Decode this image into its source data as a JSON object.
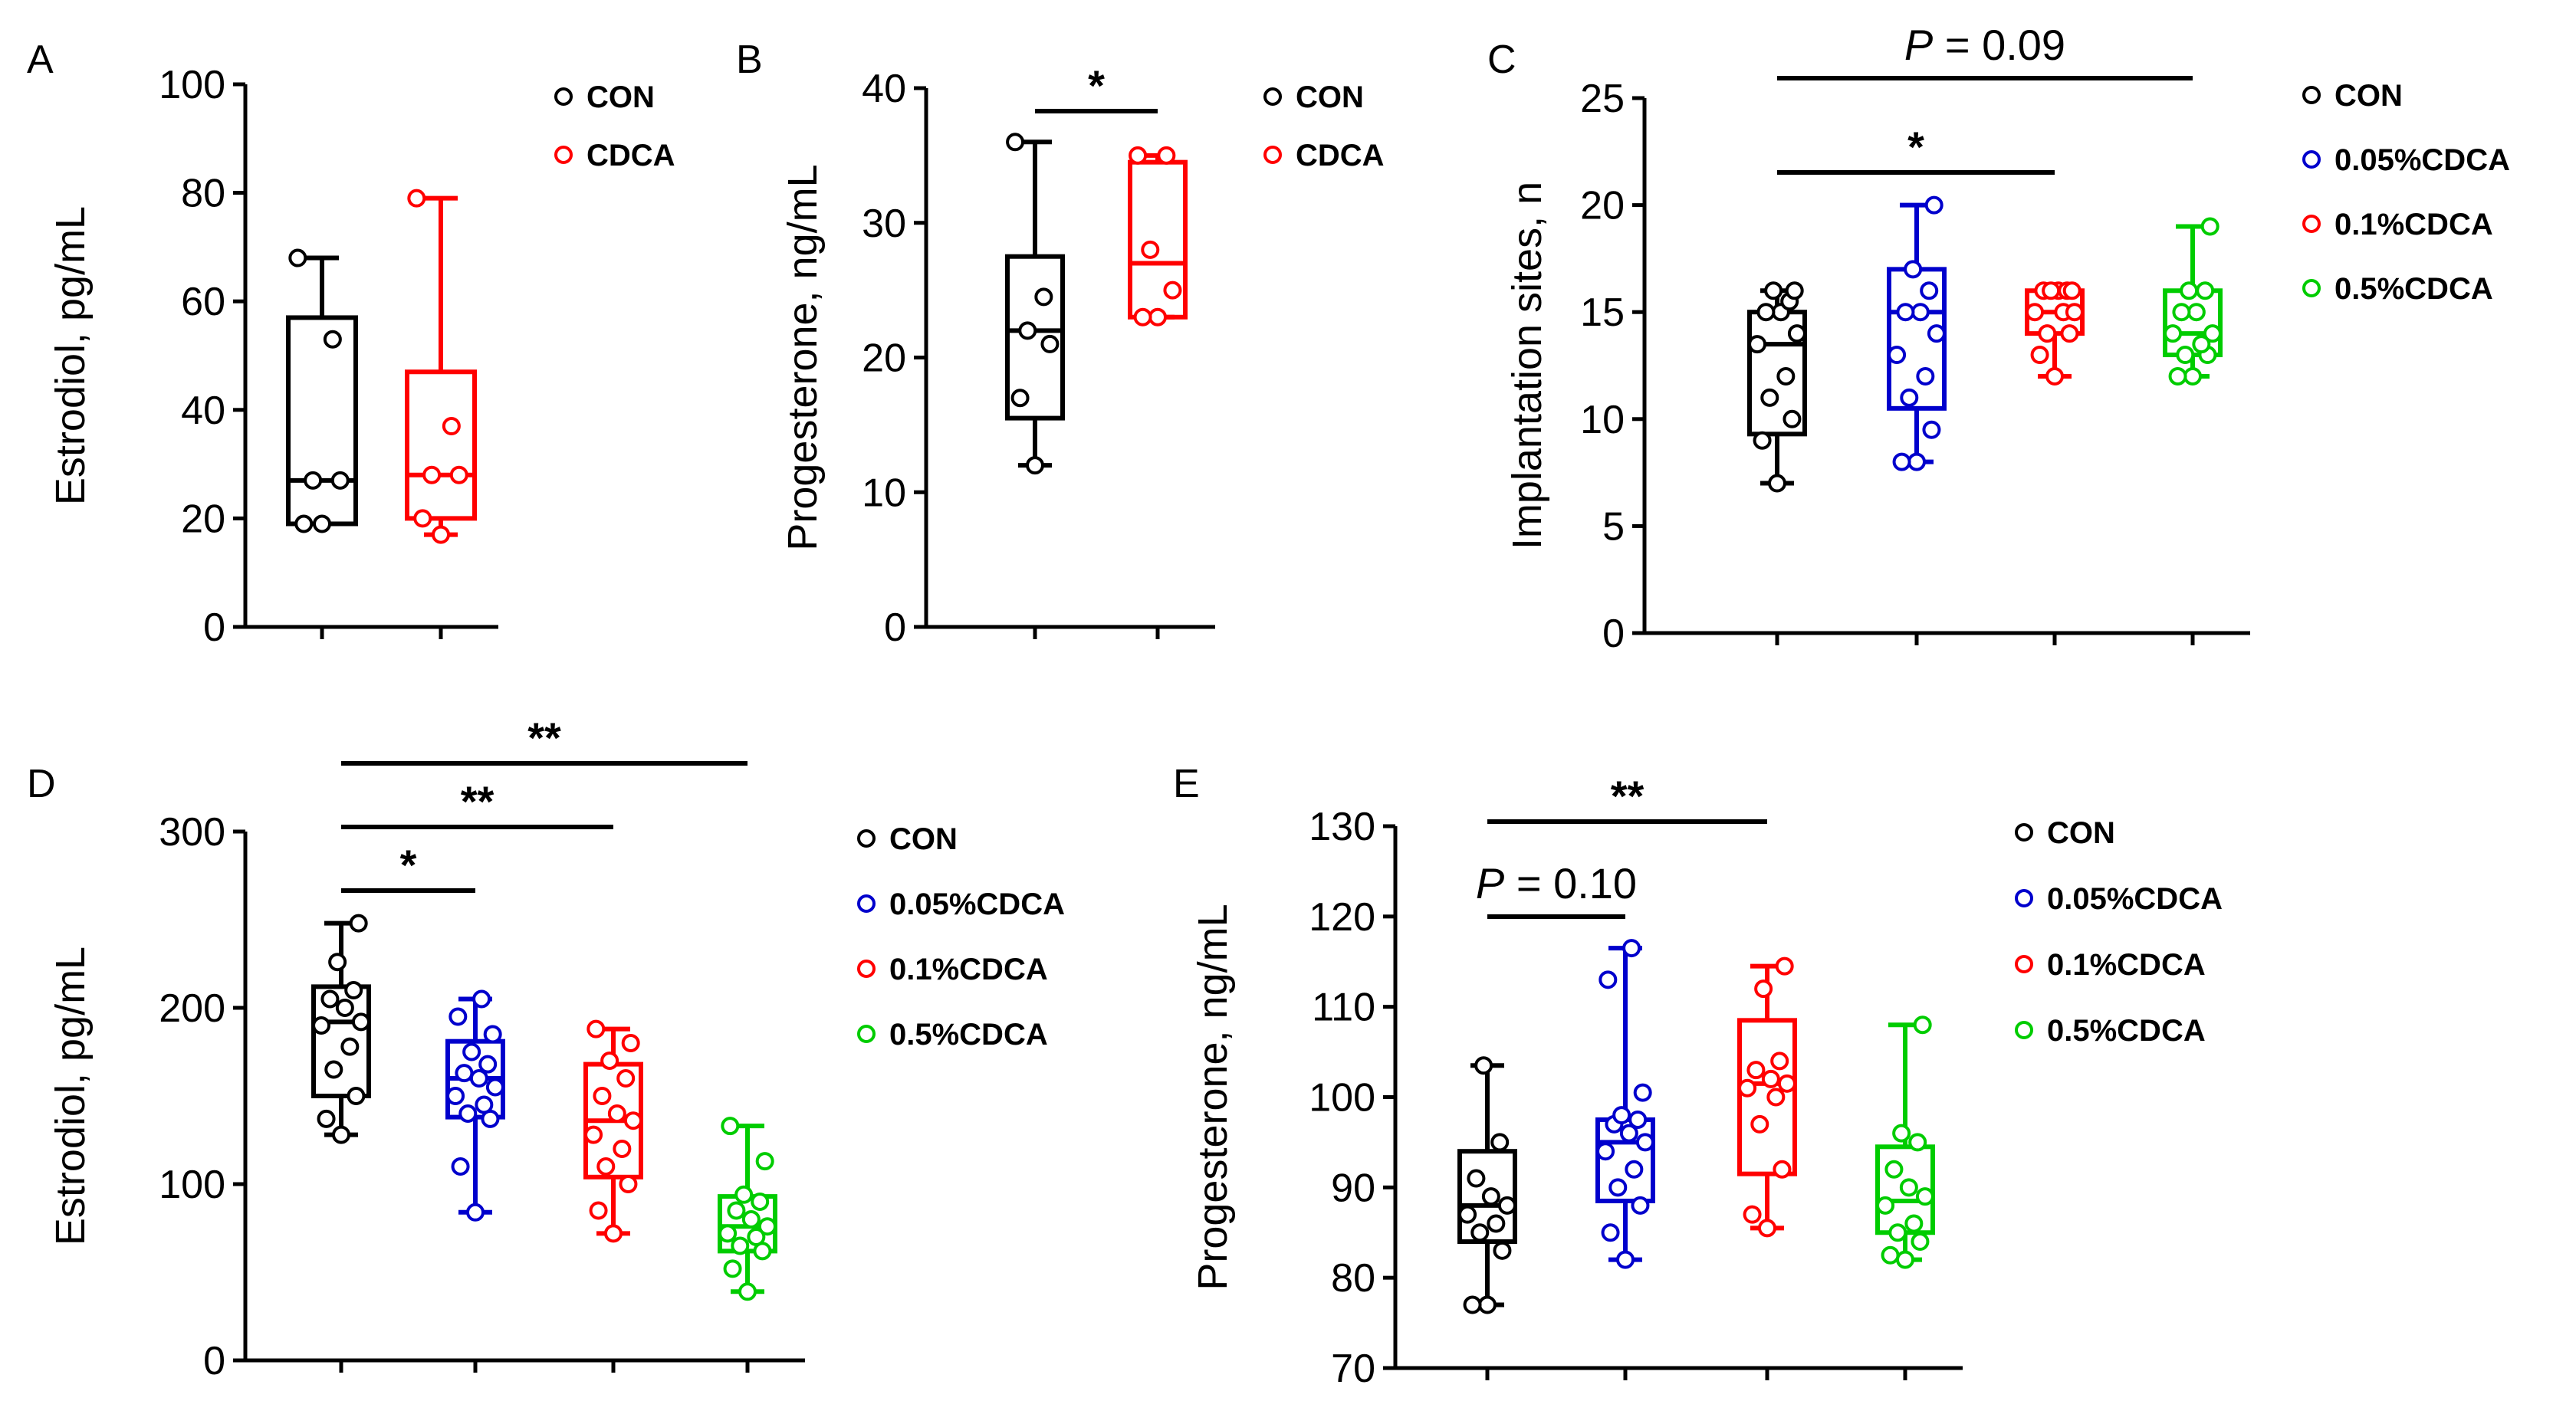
{
  "figure": {
    "panel_count": 5
  },
  "chart_data": [
    {
      "id": "A",
      "type": "box",
      "panel_label": "A",
      "ylabel": "Estrodiol, pg/mL",
      "ylim": [
        0,
        100
      ],
      "yticks": [
        0,
        20,
        40,
        60,
        80,
        100
      ],
      "series": [
        {
          "name": "CON",
          "color": "#000000",
          "min": 19,
          "q1": 19,
          "median": 27,
          "q3": 57,
          "max": 68,
          "points": [
            19,
            19,
            27,
            27,
            53,
            68
          ]
        },
        {
          "name": "CDCA",
          "color": "#ff0000",
          "min": 17,
          "q1": 20,
          "median": 28,
          "q3": 47,
          "max": 79,
          "points": [
            17,
            20,
            28,
            28,
            37,
            79
          ]
        }
      ],
      "legend": [
        "CON",
        "CDCA"
      ],
      "annotations": []
    },
    {
      "id": "B",
      "type": "box",
      "panel_label": "B",
      "ylabel": "Progesterone, ng/mL",
      "ylim": [
        0,
        40
      ],
      "yticks": [
        0,
        10,
        20,
        30,
        40
      ],
      "series": [
        {
          "name": "CON",
          "color": "#000000",
          "min": 12,
          "q1": 15.5,
          "median": 22,
          "q3": 27.5,
          "max": 36,
          "points": [
            12,
            17,
            21,
            22,
            24.5,
            36
          ]
        },
        {
          "name": "CDCA",
          "color": "#ff0000",
          "min": 23,
          "q1": 23,
          "median": 27,
          "q3": 34.5,
          "max": 35,
          "points": [
            23,
            23,
            25,
            28,
            35,
            35
          ]
        }
      ],
      "legend": [
        "CON",
        "CDCA"
      ],
      "annotations": [
        {
          "from": 0,
          "to": 1,
          "label": "*"
        }
      ]
    },
    {
      "id": "C",
      "type": "box",
      "panel_label": "C",
      "ylabel": "Implantation sites, n",
      "ylim": [
        0,
        25
      ],
      "yticks": [
        0,
        5,
        10,
        15,
        20,
        25
      ],
      "series": [
        {
          "name": "CON",
          "color": "#000000",
          "min": 7,
          "q1": 9.3,
          "median": 13.5,
          "q3": 15,
          "max": 16,
          "points": [
            7,
            9,
            10,
            11,
            12,
            13.5,
            14,
            15,
            15,
            15.5,
            16,
            16
          ]
        },
        {
          "name": "0.05%CDCA",
          "color": "#0000cc",
          "min": 8,
          "q1": 10.5,
          "median": 15,
          "q3": 17,
          "max": 20,
          "points": [
            8,
            8,
            9.5,
            11,
            12,
            13,
            14,
            15,
            15,
            16,
            17,
            20
          ]
        },
        {
          "name": "0.1%CDCA",
          "color": "#ff0000",
          "min": 12,
          "q1": 14,
          "median": 15,
          "q3": 16,
          "max": 16,
          "points": [
            12,
            13,
            14,
            14,
            15,
            15,
            15,
            16,
            16,
            16,
            16,
            16
          ]
        },
        {
          "name": "0.5%CDCA",
          "color": "#00cc00",
          "min": 12,
          "q1": 13,
          "median": 14,
          "q3": 16,
          "max": 19,
          "points": [
            12,
            12,
            13,
            13,
            13.5,
            14,
            14,
            15,
            15,
            16,
            16,
            19
          ]
        }
      ],
      "legend": [
        "CON",
        "0.05%CDCA",
        "0.1%CDCA",
        "0.5%CDCA"
      ],
      "annotations": [
        {
          "from": 0,
          "to": 2,
          "label": "*",
          "level": 0
        },
        {
          "from": 0,
          "to": 3,
          "label": "P = 0.09",
          "level": 1
        }
      ]
    },
    {
      "id": "D",
      "type": "box",
      "panel_label": "D",
      "ylabel": "Estrodiol, pg/mL",
      "ylim": [
        0,
        300
      ],
      "yticks": [
        0,
        100,
        200,
        300
      ],
      "series": [
        {
          "name": "CON",
          "color": "#000000",
          "min": 128,
          "q1": 150,
          "median": 192,
          "q3": 212,
          "max": 248,
          "points": [
            128,
            137,
            150,
            165,
            178,
            190,
            192,
            200,
            205,
            210,
            226,
            248
          ]
        },
        {
          "name": "0.05%CDCA",
          "color": "#0000cc",
          "min": 84,
          "q1": 138,
          "median": 160,
          "q3": 181,
          "max": 205,
          "points": [
            84,
            110,
            137,
            140,
            145,
            150,
            155,
            160,
            163,
            168,
            175,
            185,
            195,
            205
          ]
        },
        {
          "name": "0.1%CDCA",
          "color": "#ff0000",
          "min": 72,
          "q1": 104,
          "median": 136,
          "q3": 168,
          "max": 188,
          "points": [
            72,
            85,
            100,
            110,
            120,
            128,
            136,
            140,
            150,
            160,
            170,
            180,
            188
          ]
        },
        {
          "name": "0.5%CDCA",
          "color": "#00cc00",
          "min": 39,
          "q1": 62,
          "median": 76,
          "q3": 93,
          "max": 133,
          "points": [
            39,
            52,
            62,
            65,
            70,
            72,
            76,
            80,
            85,
            90,
            94,
            113,
            133
          ]
        }
      ],
      "legend": [
        "CON",
        "0.05%CDCA",
        "0.1%CDCA",
        "0.5%CDCA"
      ],
      "annotations": [
        {
          "from": 0,
          "to": 1,
          "label": "*",
          "level": 0
        },
        {
          "from": 0,
          "to": 2,
          "label": "**",
          "level": 1
        },
        {
          "from": 0,
          "to": 3,
          "label": "**",
          "level": 2
        }
      ]
    },
    {
      "id": "E",
      "type": "box",
      "panel_label": "E",
      "ylabel": "Progesterone, ng/mL",
      "ylim": [
        70,
        130
      ],
      "yticks": [
        70,
        80,
        90,
        100,
        110,
        120,
        130
      ],
      "series": [
        {
          "name": "CON",
          "color": "#000000",
          "min": 77,
          "q1": 84,
          "median": 88,
          "q3": 94,
          "max": 103.5,
          "points": [
            77,
            77,
            83,
            85,
            86,
            87,
            88,
            89,
            91,
            95,
            103.5
          ]
        },
        {
          "name": "0.05%CDCA",
          "color": "#0000cc",
          "min": 82,
          "q1": 88.5,
          "median": 95,
          "q3": 97.5,
          "max": 116.5,
          "points": [
            82,
            85,
            88,
            90,
            92,
            94,
            95,
            96,
            97,
            97.5,
            98,
            100.5,
            113,
            116.5
          ]
        },
        {
          "name": "0.1%CDCA",
          "color": "#ff0000",
          "min": 85.5,
          "q1": 91.5,
          "median": 101.5,
          "q3": 108.5,
          "max": 114.5,
          "points": [
            85.5,
            87,
            92,
            97,
            100,
            101,
            101.5,
            102,
            103,
            104,
            112,
            114.5
          ]
        },
        {
          "name": "0.5%CDCA",
          "color": "#00cc00",
          "min": 82,
          "q1": 85,
          "median": 88.5,
          "q3": 94.5,
          "max": 108,
          "points": [
            82,
            82.5,
            84,
            85,
            86,
            88,
            89,
            90,
            92,
            95,
            96,
            108
          ]
        }
      ],
      "legend": [
        "CON",
        "0.05%CDCA",
        "0.1%CDCA",
        "0.5%CDCA"
      ],
      "annotations": [
        {
          "from": 0,
          "to": 1,
          "label": "P = 0.10",
          "level": 0
        },
        {
          "from": 0,
          "to": 2,
          "label": "**",
          "level": 1
        }
      ]
    }
  ]
}
